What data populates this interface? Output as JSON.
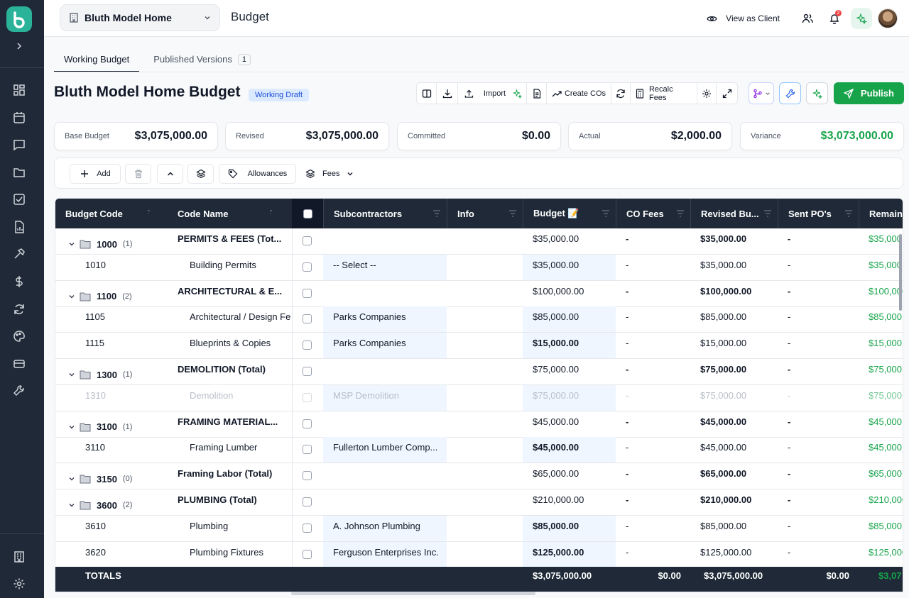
{
  "topbar": {
    "project_name": "Bluth Model Home",
    "page_title": "Budget",
    "view_as_client": "View as Client",
    "notification_count": "2"
  },
  "tabs": [
    {
      "label": "Working Budget"
    },
    {
      "label": "Published Versions",
      "count": "1"
    }
  ],
  "budget": {
    "title": "Bluth Model Home Budget",
    "status": "Working Draft"
  },
  "toolbar": {
    "import": "Import",
    "create_cos": "Create COs",
    "recalc_fees": "Recalc Fees",
    "publish": "Publish"
  },
  "stats": [
    {
      "label": "Base Budget",
      "value": "$3,075,000.00"
    },
    {
      "label": "Revised",
      "value": "$3,075,000.00"
    },
    {
      "label": "Committed",
      "value": "$0.00"
    },
    {
      "label": "Actual",
      "value": "$2,000.00"
    },
    {
      "label": "Variance",
      "value": "$3,073,000.00"
    }
  ],
  "actions": {
    "add": "Add",
    "allowances": "Allowances",
    "fees": "Fees"
  },
  "columns": {
    "budget_code": "Budget Code",
    "code_name": "Code Name",
    "subcontractors": "Subcontractors",
    "info": "Info",
    "budget": "Budget 📝",
    "co_fees": "CO Fees",
    "revised_budget": "Revised Bu...",
    "sent_pos": "Sent PO's",
    "remaining": "Remaini"
  },
  "rows": [
    {
      "type": "group",
      "code": "1000",
      "count": "(1)",
      "name": "PERMITS & FEES (Tot...",
      "sub": "",
      "budget": "$35,000.00",
      "co": "-",
      "revised": "$35,000.00",
      "sent": "-",
      "remaining": "$35,000"
    },
    {
      "type": "item",
      "code": "1010",
      "name": "Building Permits",
      "sub": "-- Select --",
      "budget": "$35,000.00",
      "co": "-",
      "revised": "$35,000.00",
      "sent": "-",
      "remaining": "$35,000"
    },
    {
      "type": "group",
      "code": "1100",
      "count": "(2)",
      "name": "ARCHITECTURAL & E...",
      "sub": "",
      "budget": "$100,000.00",
      "co": "-",
      "revised": "$100,000.00",
      "sent": "-",
      "remaining": "$100,000"
    },
    {
      "type": "item",
      "code": "1105",
      "name": "Architectural / Design Fee",
      "sub": "Parks Companies",
      "budget": "$85,000.00",
      "co": "-",
      "revised": "$85,000.00",
      "sent": "-",
      "remaining": "$85,000"
    },
    {
      "type": "item",
      "code": "1115",
      "name": "Blueprints & Copies",
      "sub": "Parks Companies",
      "budget": "$15,000.00",
      "co": "-",
      "revised": "$15,000.00",
      "sent": "-",
      "remaining": "$15,000"
    },
    {
      "type": "group",
      "code": "1300",
      "count": "(1)",
      "name": "DEMOLITION (Total)",
      "sub": "",
      "budget": "$75,000.00",
      "co": "-",
      "revised": "$75,000.00",
      "sent": "-",
      "remaining": "$75,000"
    },
    {
      "type": "item",
      "faded": true,
      "code": "1310",
      "name": "Demolition",
      "sub": "MSP Demolition",
      "budget": "$75,000.00",
      "co": "-",
      "revised": "$75,000.00",
      "sent": "-",
      "remaining": "$75,000"
    },
    {
      "type": "group",
      "code": "3100",
      "count": "(1)",
      "name": "FRAMING MATERIAL...",
      "sub": "",
      "budget": "$45,000.00",
      "co": "-",
      "revised": "$45,000.00",
      "sent": "-",
      "remaining": "$45,000"
    },
    {
      "type": "item",
      "code": "3110",
      "name": "Framing Lumber",
      "sub": "Fullerton Lumber Comp...",
      "budget": "$45,000.00",
      "co": "-",
      "revised": "$45,000.00",
      "sent": "-",
      "remaining": "$45,000"
    },
    {
      "type": "group",
      "code": "3150",
      "count": "(0)",
      "name": "Framing Labor (Total)",
      "sub": "",
      "budget": "$65,000.00",
      "co": "-",
      "revised": "$65,000.00",
      "sent": "-",
      "remaining": "$65,000"
    },
    {
      "type": "group",
      "code": "3600",
      "count": "(2)",
      "name": "PLUMBING (Total)",
      "sub": "",
      "budget": "$210,000.00",
      "co": "-",
      "revised": "$210,000.00",
      "sent": "-",
      "remaining": "$210,000"
    },
    {
      "type": "item",
      "code": "3610",
      "name": "Plumbing",
      "sub": "A. Johnson Plumbing",
      "budget": "$85,000.00",
      "co": "-",
      "revised": "$85,000.00",
      "sent": "-",
      "remaining": "$85,000"
    },
    {
      "type": "item",
      "code": "3620",
      "name": "Plumbing Fixtures",
      "sub": "Ferguson Enterprises Inc.",
      "budget": "$125,000.00",
      "co": "-",
      "revised": "$125,000.00",
      "sent": "-",
      "remaining": "$125,000"
    }
  ],
  "totals": {
    "label": "TOTALS",
    "budget": "$3,075,000.00",
    "co_fees": "$0.00",
    "revised": "$3,075,000.00",
    "sent": "$0.00",
    "remaining": "$3,07"
  },
  "colors": {
    "accent_green": "#16a34a",
    "sidebar": "#1f2937",
    "logo": "#2bb39a"
  }
}
